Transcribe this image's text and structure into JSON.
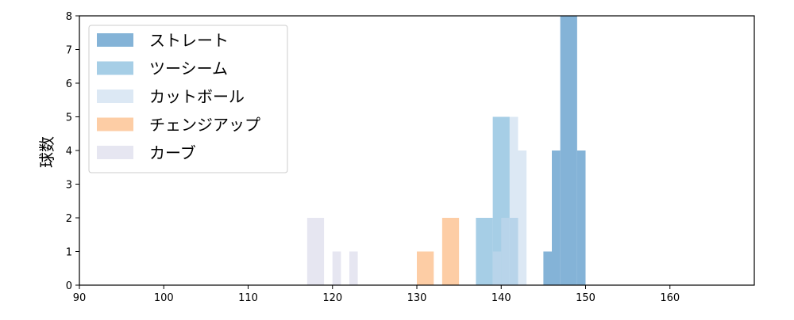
{
  "chart_data": {
    "type": "bar",
    "subtype": "histogram",
    "title": "",
    "xlabel": "",
    "ylabel": "球数",
    "xlim": [
      90,
      170
    ],
    "ylim": [
      0,
      8
    ],
    "xticks": [
      90,
      100,
      110,
      120,
      130,
      140,
      150,
      160
    ],
    "yticks": [
      0,
      1,
      2,
      3,
      4,
      5,
      6,
      7,
      8
    ],
    "grid": false,
    "legend_position": "top-left",
    "series": [
      {
        "name": "ストレート",
        "color": "#84b3d7",
        "opacity": 1,
        "bins": [
          [
            145,
            146,
            1
          ],
          [
            146,
            147,
            4
          ],
          [
            147,
            149,
            8
          ],
          [
            149,
            150,
            4
          ]
        ]
      },
      {
        "name": "ツーシーム",
        "color": "#a6cee6",
        "opacity": 1,
        "bins": [
          [
            137,
            139,
            2
          ],
          [
            139,
            141,
            5
          ],
          [
            141,
            142,
            2
          ]
        ]
      },
      {
        "name": "カットボール",
        "color": "#c4d8ed",
        "opacity": 0.6,
        "bins": [
          [
            139,
            140,
            1
          ],
          [
            140,
            141,
            2
          ],
          [
            141,
            142,
            5
          ],
          [
            142,
            143,
            4
          ]
        ]
      },
      {
        "name": "チェンジアップ",
        "color": "#fdcda5",
        "opacity": 1,
        "bins": [
          [
            130,
            132,
            1
          ],
          [
            133,
            135,
            2
          ]
        ]
      },
      {
        "name": "カーブ",
        "color": "#e6e6f1",
        "opacity": 1,
        "bins": [
          [
            117,
            119,
            2
          ],
          [
            120,
            121,
            1
          ],
          [
            122,
            123,
            1
          ]
        ]
      }
    ]
  }
}
